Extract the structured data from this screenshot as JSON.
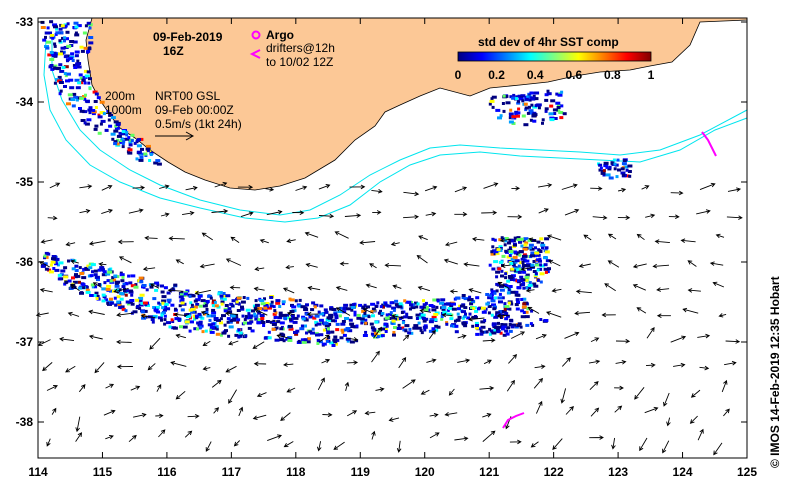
{
  "header": {
    "date": "09-Feb-2019",
    "time": "16Z"
  },
  "legend": {
    "argo_label": "Argo",
    "drifters_line1": "drifters@12h",
    "drifters_line2": "to 10/02 12Z",
    "argo_color": "#ff00ff",
    "drifter_color": "#ff00ff"
  },
  "isobaths": {
    "line1": "200m",
    "line2": "1000m",
    "color": "#00e5ee"
  },
  "velocity_info": {
    "line1": "NRT00 GSL",
    "line2": "09-Feb 00:00Z",
    "line3": "0.5m/s (1kt 24h)"
  },
  "colorbar": {
    "title": "std dev of 4hr SST comp",
    "ticks": [
      "0",
      "0.2",
      "0.4",
      "0.6",
      "0.8",
      "1"
    ],
    "colors": [
      "#000080",
      "#0000ff",
      "#0080ff",
      "#00ffff",
      "#80ff80",
      "#ffff00",
      "#ff8000",
      "#ff0000",
      "#800000"
    ]
  },
  "axes": {
    "x_ticks": [
      "114",
      "115",
      "116",
      "117",
      "118",
      "119",
      "120",
      "121",
      "122",
      "123",
      "124",
      "125"
    ],
    "y_ticks": [
      "-33",
      "-34",
      "-35",
      "-36",
      "-37",
      "-38"
    ]
  },
  "credit": "© IMOS 14-Feb-2019 12:35 Hobart",
  "colors": {
    "land": "#fcc896",
    "frame": "#000000"
  }
}
